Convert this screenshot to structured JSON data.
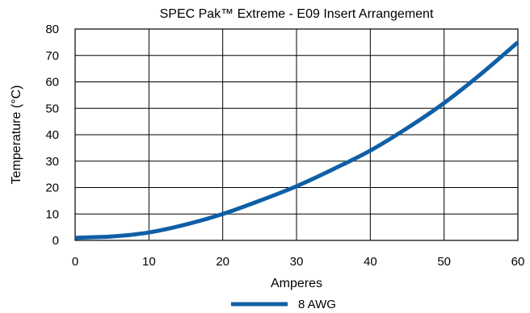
{
  "chart_data": {
    "type": "line",
    "title": "SPEC Pak™ Extreme - E09 Insert Arrangement",
    "xlabel": "Amperes",
    "ylabel": "Temperature (°C)",
    "xlim": [
      0,
      60
    ],
    "ylim": [
      0,
      80
    ],
    "xticks": [
      0,
      10,
      20,
      30,
      40,
      50,
      60
    ],
    "yticks": [
      0,
      10,
      20,
      30,
      40,
      50,
      60,
      70,
      80
    ],
    "grid": true,
    "legend_position": "bottom-center",
    "series": [
      {
        "name": "8 AWG",
        "color": "#0f5fa6",
        "x": [
          0,
          5,
          10,
          15,
          20,
          25,
          30,
          35,
          40,
          45,
          50,
          55,
          60
        ],
        "y": [
          1,
          1.5,
          3,
          6,
          10,
          15,
          20.5,
          27,
          34,
          42.5,
          52,
          63,
          75
        ]
      }
    ]
  }
}
